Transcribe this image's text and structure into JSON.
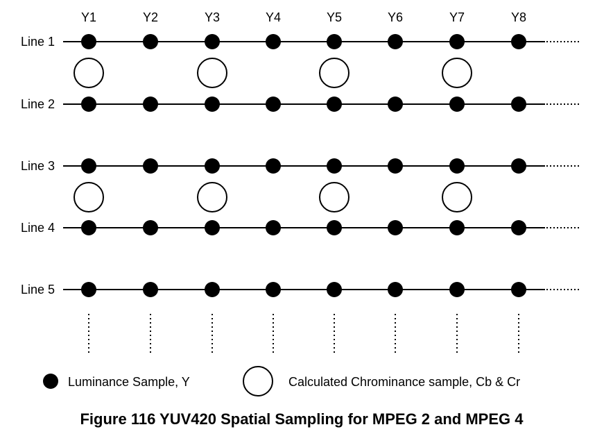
{
  "columns": [
    "Y1",
    "Y2",
    "Y3",
    "Y4",
    "Y5",
    "Y6",
    "Y7",
    "Y8"
  ],
  "lines": [
    "Line 1",
    "Line 2",
    "Line 3",
    "Line 4",
    "Line 5"
  ],
  "legend": {
    "luminance": "Luminance Sample, Y",
    "chrominance": "Calculated Chrominance sample, Cb & Cr"
  },
  "caption": "Figure 116 YUV420 Spatial Sampling for MPEG 2 and MPEG 4",
  "colors": {
    "ink": "#000000",
    "background": "#ffffff"
  }
}
